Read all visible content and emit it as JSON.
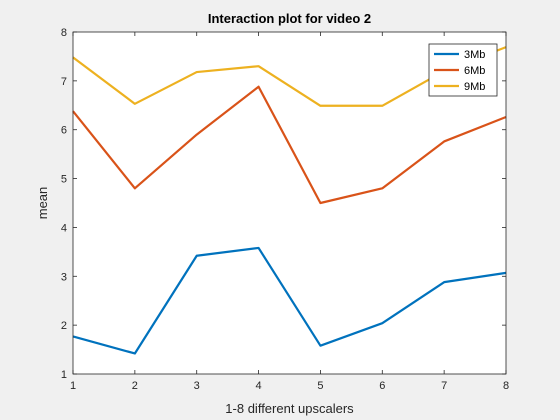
{
  "chart_data": {
    "type": "line",
    "title": "Interaction plot for video 2",
    "xlabel": "1-8 different upscalers",
    "ylabel": "mean",
    "x": [
      1,
      2,
      3,
      4,
      5,
      6,
      7,
      8
    ],
    "xlim": [
      1,
      8
    ],
    "ylim": [
      1,
      8
    ],
    "xticks": [
      1,
      2,
      3,
      4,
      5,
      6,
      7,
      8
    ],
    "yticks": [
      1,
      2,
      3,
      4,
      5,
      6,
      7,
      8
    ],
    "grid": false,
    "legend_position": "top-right",
    "series": [
      {
        "name": "3Mb",
        "color": "#0072bd",
        "values": [
          1.77,
          1.42,
          3.42,
          3.58,
          1.58,
          2.04,
          2.88,
          3.07
        ]
      },
      {
        "name": "6Mb",
        "color": "#d95319",
        "values": [
          6.38,
          4.8,
          5.9,
          6.88,
          4.5,
          4.8,
          5.76,
          6.26
        ]
      },
      {
        "name": "9Mb",
        "color": "#edb120",
        "values": [
          7.48,
          6.53,
          7.18,
          7.3,
          6.49,
          6.49,
          7.2,
          7.69
        ]
      }
    ]
  }
}
